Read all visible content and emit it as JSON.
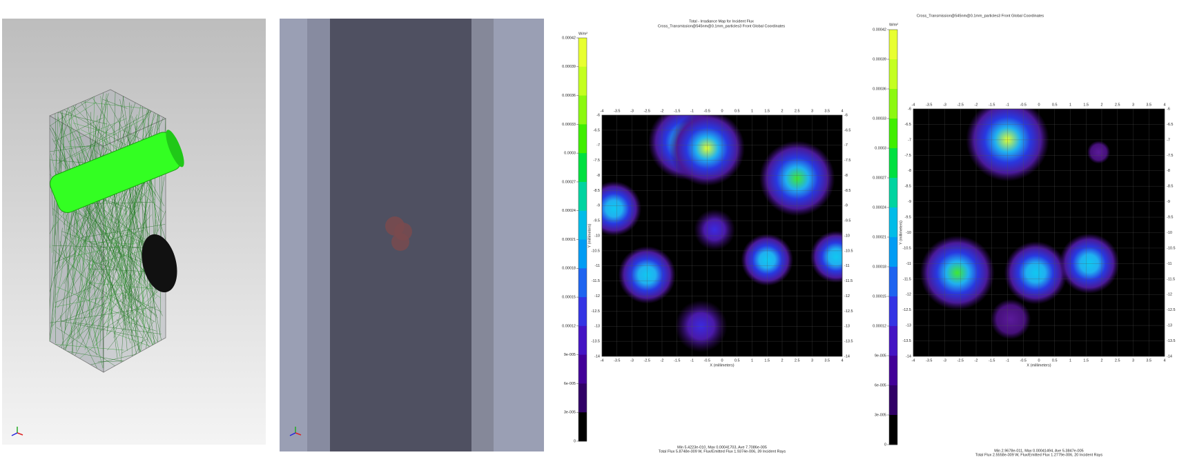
{
  "maps": [
    {
      "title": "Total - Irradiance Map for Incident Flux",
      "subtitle": "Cross_Transmission@545nm@0.1mm_particles3 Front   Global Coordinates",
      "unit": "W/m²",
      "colorbar_ticks": [
        "0.00042",
        "0.00039",
        "0.00036",
        "0.00033",
        "0.0003",
        "0.00027",
        "0.00024",
        "0.00021",
        "0.00018",
        "0.00015",
        "0.00012",
        "9e-005",
        "6e-005",
        "3e-005",
        "0"
      ],
      "x_ticks": [
        "-4",
        "-3.5",
        "-3",
        "-2.5",
        "-2",
        "-1.5",
        "-1",
        "-0.5",
        "0",
        "0.5",
        "1",
        "1.5",
        "2",
        "2.5",
        "3",
        "3.5",
        "4"
      ],
      "y_ticks": [
        "-6",
        "-6.5",
        "-7",
        "-7.5",
        "-8",
        "-8.5",
        "-9",
        "-9.5",
        "-10",
        "-10.5",
        "-11",
        "-11.5",
        "-12",
        "-12.5",
        "-13",
        "-13.5",
        "-14"
      ],
      "x_label": "X (millimeters)",
      "y_label": "Y (millimeters)",
      "stats": [
        "Min 5.4223e-010, Max 0.00041703, Ave 7.7086e-005",
        "Total Flux 5.8748e-009 W, Flux/Emitted Flux 1.9374e-006, 39 Incident Rays"
      ]
    },
    {
      "subtitle": "Cross_Transmission@545nm@0.1mm_particles3 Front   Global Coordinates",
      "unit": "W/m²",
      "colorbar_ticks": [
        "0.00042",
        "0.00039",
        "0.00036",
        "0.00033",
        "0.0003",
        "0.00027",
        "0.00024",
        "0.00021",
        "0.00018",
        "0.00015",
        "0.00012",
        "9e-005",
        "6e-005",
        "3e-005",
        "0"
      ],
      "x_ticks": [
        "-4",
        "-3.5",
        "-3",
        "-2.5",
        "-2",
        "-1.5",
        "-1",
        "-0.5",
        "0",
        "0.5",
        "1",
        "1.5",
        "2",
        "2.5",
        "3",
        "3.5",
        "4"
      ],
      "y_ticks": [
        "-6",
        "-6.5",
        "-7",
        "-7.5",
        "-8",
        "-8.5",
        "-9",
        "-9.5",
        "-10",
        "-10.5",
        "-11",
        "-11.5",
        "-12",
        "-12.5",
        "-13",
        "-13.5",
        "-14"
      ],
      "x_label": "X (millimeters)",
      "y_label": "Y (millimeters)",
      "stats": [
        "Min 2.9678e-011, Max 0.00041494, Ave 5.3847e-005",
        "Total Flux 2.5558e-009 W, Flux/Emitted Flux 1.2779e-006, 20 Incident Rays"
      ]
    }
  ]
}
